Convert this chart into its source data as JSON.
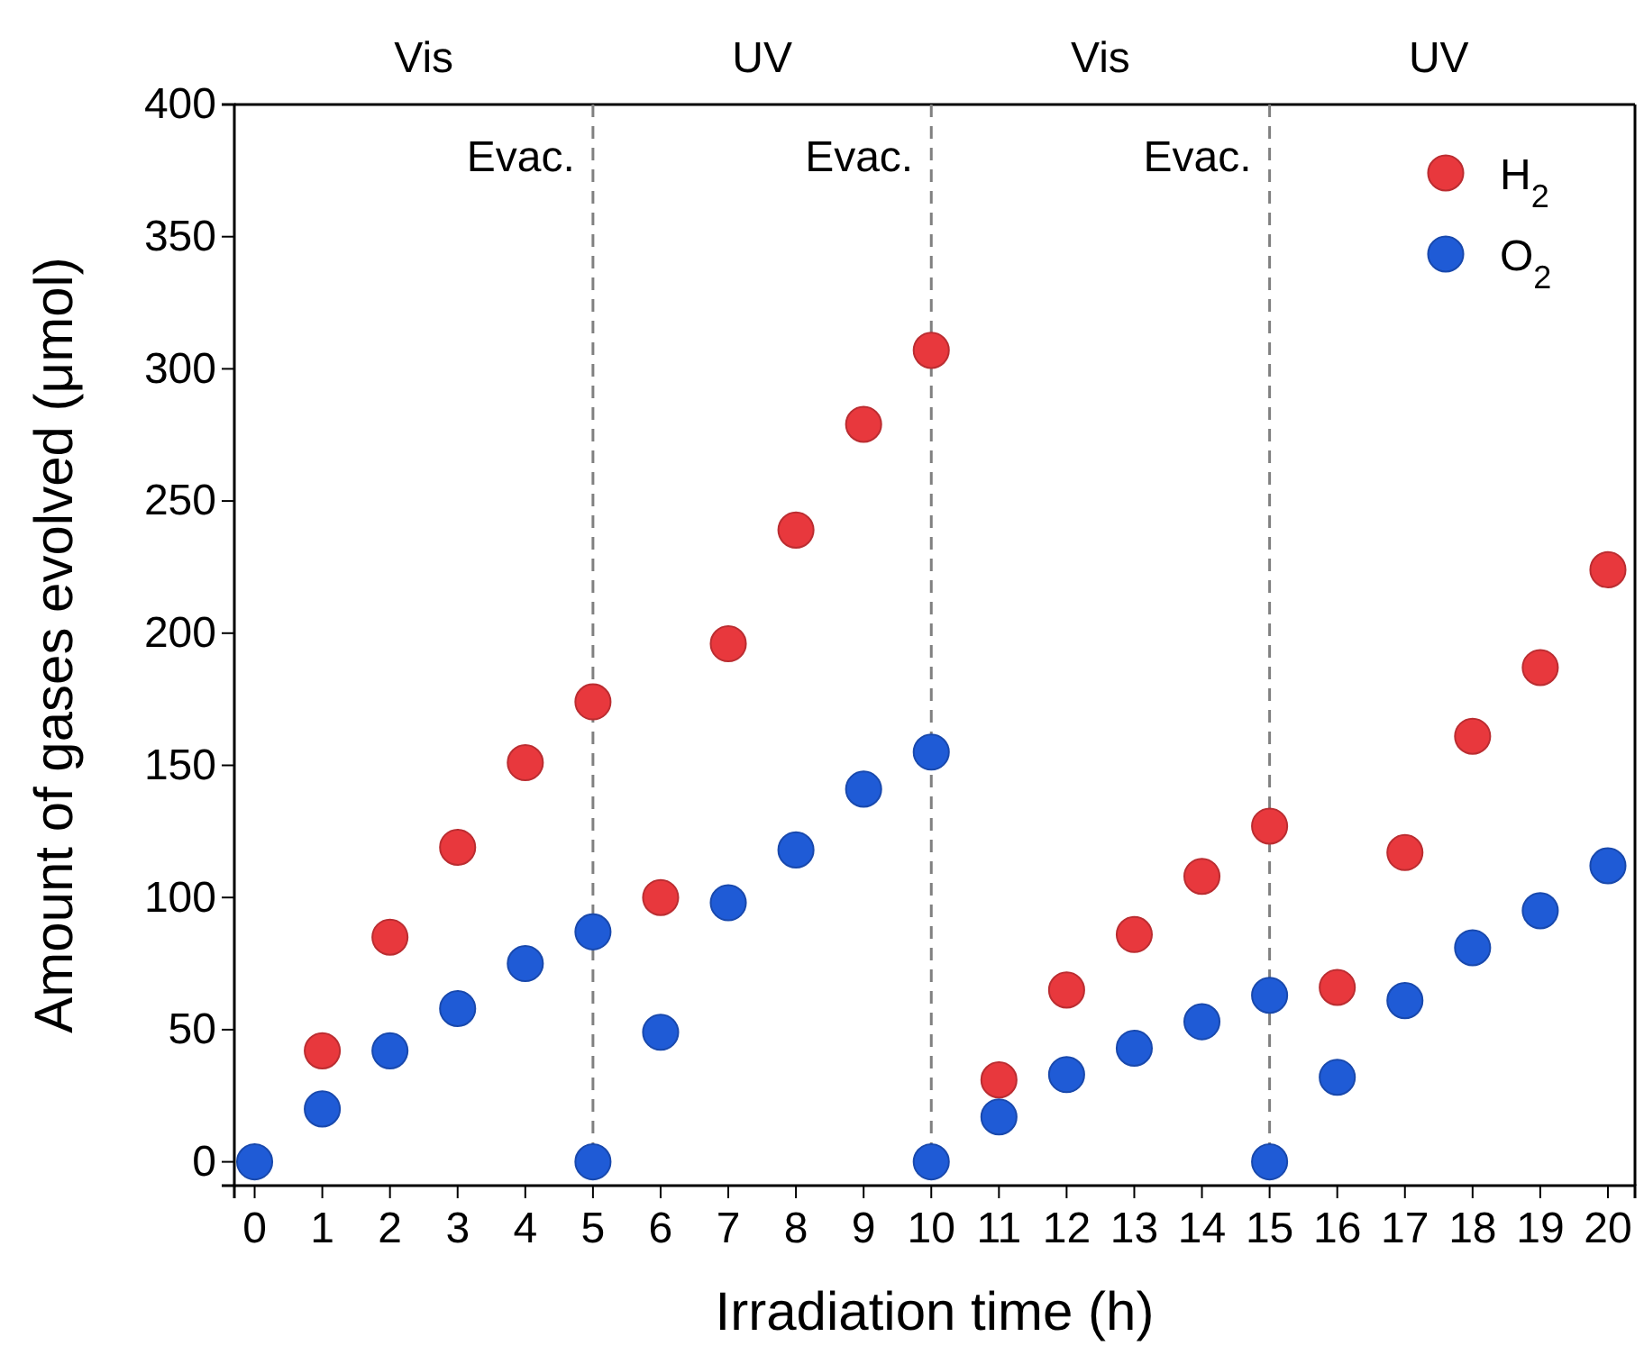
{
  "chart_data": {
    "type": "scatter",
    "xlabel": "Irradiation time (h)",
    "ylabel": "Amount of gases evolved (μmol)",
    "xlim": [
      -0.3,
      20.4
    ],
    "xticks": [
      0,
      1,
      2,
      3,
      4,
      5,
      6,
      7,
      8,
      9,
      10,
      11,
      12,
      13,
      14,
      15,
      16,
      17,
      18,
      19,
      20
    ],
    "ylim": [
      -9,
      400
    ],
    "yticks": [
      0,
      50,
      100,
      150,
      200,
      250,
      300,
      350,
      400
    ],
    "grid": false,
    "legend": "top right",
    "marker": "circle",
    "series": [
      {
        "name": "H$_{2}$",
        "color": "#e8383d",
        "x": [
          1,
          2,
          3,
          4,
          5,
          6,
          7,
          8,
          9,
          10,
          11,
          12,
          13,
          14,
          15,
          16,
          17,
          18,
          19,
          20
        ],
        "values": [
          42,
          85,
          119,
          151,
          174,
          100,
          196,
          239,
          279,
          307,
          31,
          65,
          86,
          108,
          127,
          66,
          117,
          161,
          187,
          224
        ]
      },
      {
        "name": "O$_{2}$",
        "color": "#1f5bd6",
        "x": [
          0,
          1,
          2,
          3,
          4,
          5,
          5,
          6,
          7,
          8,
          9,
          10,
          10,
          11,
          12,
          13,
          14,
          15,
          15,
          16,
          17,
          18,
          19,
          20
        ],
        "values": [
          0,
          20,
          42,
          58,
          75,
          87,
          0,
          49,
          98,
          118,
          141,
          155,
          0,
          17,
          33,
          43,
          53,
          63,
          0,
          32,
          61,
          81,
          95,
          112
        ]
      }
    ],
    "ref_lines": [
      {
        "axis": "x",
        "value": 5,
        "label": "Evac.",
        "color": "#808080",
        "line_style": "dashed"
      },
      {
        "axis": "x",
        "value": 10,
        "label": "Evac.",
        "color": "#808080",
        "line_style": "dashed"
      },
      {
        "axis": "x",
        "value": 15,
        "label": "Evac.",
        "color": "#808080",
        "line_style": "dashed"
      }
    ],
    "annotations": [
      "Vis",
      "UV",
      "Vis",
      "UV"
    ]
  }
}
